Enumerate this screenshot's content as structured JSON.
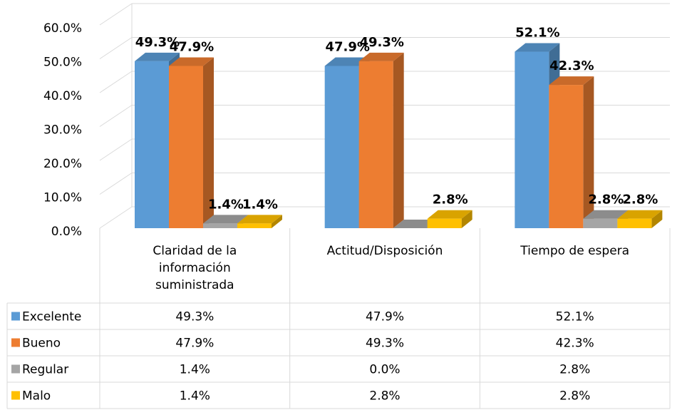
{
  "chart_data": {
    "type": "bar3d",
    "categories": [
      "Claridad de la información suministrada",
      "Actitud/Disposición",
      "Tiempo de espera"
    ],
    "series": [
      {
        "name": "Excelente",
        "color": "#5b9bd5",
        "values": [
          49.3,
          47.9,
          52.1
        ],
        "value_labels": [
          "49.3%",
          "47.9%",
          "52.1%"
        ]
      },
      {
        "name": "Bueno",
        "color": "#ed7d31",
        "values": [
          47.9,
          49.3,
          42.3
        ],
        "value_labels": [
          "47.9%",
          "49.3%",
          "42.3%"
        ]
      },
      {
        "name": "Regular",
        "color": "#a5a5a5",
        "values": [
          1.4,
          0.0,
          2.8
        ],
        "value_labels": [
          "1.4%",
          "0.0%",
          "2.8%"
        ]
      },
      {
        "name": "Malo",
        "color": "#ffc000",
        "values": [
          1.4,
          2.8,
          2.8
        ],
        "value_labels": [
          "1.4%",
          "2.8%",
          "2.8%"
        ]
      }
    ],
    "ylim": [
      0,
      60
    ],
    "yticks": [
      {
        "value": 0,
        "label": "0.0%"
      },
      {
        "value": 10,
        "label": "10.0%"
      },
      {
        "value": 20,
        "label": "20.0%"
      },
      {
        "value": 30,
        "label": "30.0%"
      },
      {
        "value": 40,
        "label": "40.0%"
      },
      {
        "value": 50,
        "label": "50.0%"
      },
      {
        "value": 60,
        "label": "60.0%"
      }
    ],
    "grid": true,
    "data_table": true
  }
}
